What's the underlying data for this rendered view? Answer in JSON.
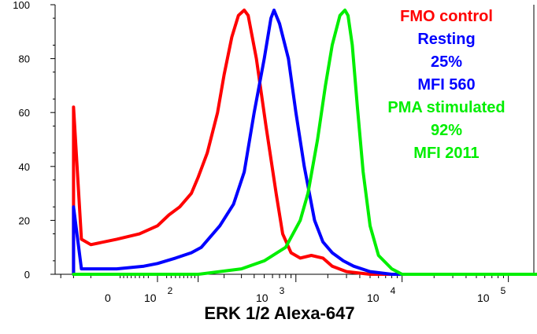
{
  "chart_data": {
    "type": "line",
    "xlabel": "ERK 1/2 Alexa-647",
    "ylabel": "",
    "ylim": [
      0,
      100
    ],
    "y_ticks": [
      0,
      20,
      40,
      60,
      80,
      100
    ],
    "x_scale": "logicle",
    "x_tick_labels": [
      {
        "base": "0",
        "exp": ""
      },
      {
        "base": "10",
        "exp": "2"
      },
      {
        "base": "10",
        "exp": "3"
      },
      {
        "base": "10",
        "exp": "4"
      },
      {
        "base": "10",
        "exp": "5"
      }
    ],
    "legend_placement": "top-right",
    "legend": [
      {
        "text": "FMO control",
        "color": "#ff0000"
      },
      {
        "text": "Resting",
        "color": "#0000ff"
      },
      {
        "text": "25%",
        "color": "#0000ff"
      },
      {
        "text": "MFI 560",
        "color": "#0000ff"
      },
      {
        "text": "PMA stimulated",
        "color": "#00ee00"
      },
      {
        "text": "92%",
        "color": "#00ee00"
      },
      {
        "text": "MFI 2011",
        "color": "#00ee00"
      }
    ],
    "series": [
      {
        "name": "FMO control",
        "color": "#ff0000",
        "points": [
          [
            -300,
            0
          ],
          [
            -300,
            62
          ],
          [
            -250,
            13
          ],
          [
            -200,
            11
          ],
          [
            -100,
            13
          ],
          [
            -40,
            15
          ],
          [
            0,
            18
          ],
          [
            25,
            22
          ],
          [
            50,
            25
          ],
          [
            80,
            30
          ],
          [
            100,
            36
          ],
          [
            130,
            45
          ],
          [
            170,
            60
          ],
          [
            200,
            74
          ],
          [
            240,
            88
          ],
          [
            280,
            96
          ],
          [
            320,
            98
          ],
          [
            350,
            96
          ],
          [
            420,
            80
          ],
          [
            520,
            55
          ],
          [
            650,
            30
          ],
          [
            750,
            15
          ],
          [
            900,
            8
          ],
          [
            1100,
            6
          ],
          [
            1400,
            7
          ],
          [
            1800,
            6
          ],
          [
            2200,
            3
          ],
          [
            3000,
            1
          ],
          [
            5000,
            0
          ],
          [
            10000,
            0
          ]
        ]
      },
      {
        "name": "Resting",
        "color": "#0000ff",
        "points": [
          [
            -300,
            0
          ],
          [
            -300,
            25
          ],
          [
            -250,
            2
          ],
          [
            -100,
            2
          ],
          [
            -30,
            3
          ],
          [
            0,
            4
          ],
          [
            40,
            6
          ],
          [
            80,
            8
          ],
          [
            110,
            10
          ],
          [
            180,
            18
          ],
          [
            250,
            26
          ],
          [
            320,
            38
          ],
          [
            400,
            60
          ],
          [
            500,
            80
          ],
          [
            580,
            95
          ],
          [
            620,
            98
          ],
          [
            700,
            93
          ],
          [
            850,
            80
          ],
          [
            1000,
            60
          ],
          [
            1200,
            40
          ],
          [
            1500,
            20
          ],
          [
            1800,
            12
          ],
          [
            2200,
            8
          ],
          [
            2800,
            5
          ],
          [
            3500,
            3
          ],
          [
            5000,
            1
          ],
          [
            8000,
            0
          ],
          [
            10000,
            0
          ]
        ]
      },
      {
        "name": "PMA stimulated",
        "color": "#00ee00",
        "points": [
          [
            -300,
            0
          ],
          [
            100,
            0
          ],
          [
            300,
            2
          ],
          [
            500,
            5
          ],
          [
            800,
            10
          ],
          [
            1100,
            20
          ],
          [
            1300,
            30
          ],
          [
            1600,
            50
          ],
          [
            1900,
            70
          ],
          [
            2200,
            85
          ],
          [
            2600,
            96
          ],
          [
            2900,
            98
          ],
          [
            3100,
            96
          ],
          [
            3400,
            85
          ],
          [
            3800,
            62
          ],
          [
            4300,
            38
          ],
          [
            5000,
            18
          ],
          [
            6000,
            7
          ],
          [
            8000,
            2
          ],
          [
            10000,
            0
          ],
          [
            300000,
            0
          ]
        ]
      }
    ]
  }
}
